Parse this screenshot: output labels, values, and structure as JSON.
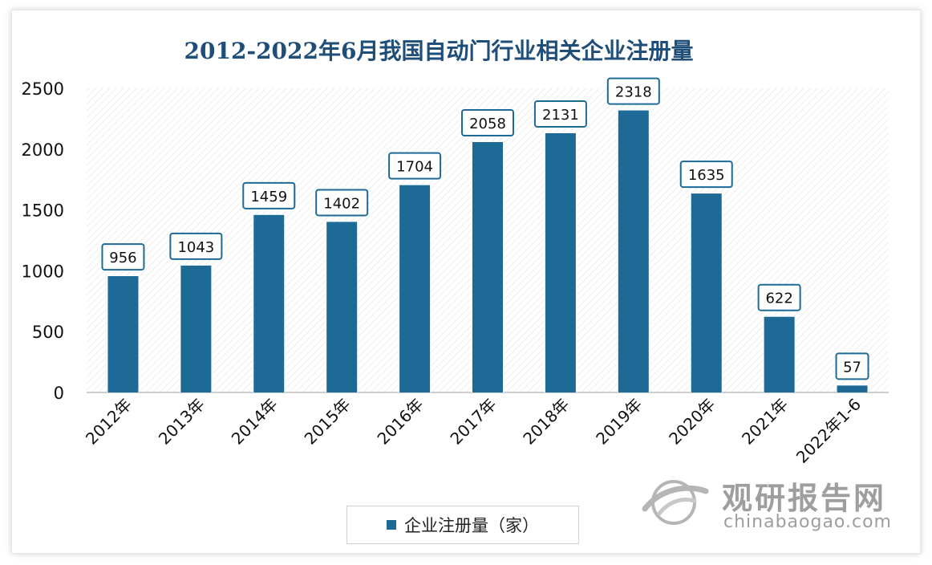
{
  "chart_data": {
    "type": "bar",
    "title": "2012-2022年6月我国自动门行业相关企业注册量",
    "categories": [
      "2012年",
      "2013年",
      "2014年",
      "2015年",
      "2016年",
      "2017年",
      "2018年",
      "2019年",
      "2020年",
      "2021年",
      "2022年1-6"
    ],
    "series": [
      {
        "name": "企业注册量（家）",
        "values": [
          956,
          1043,
          1459,
          1402,
          1704,
          2058,
          2131,
          2318,
          1635,
          622,
          57
        ]
      }
    ],
    "ylim": [
      0,
      2500
    ],
    "yticks": [
      0,
      500,
      1000,
      1500,
      2000,
      2500
    ],
    "grid": false,
    "data_labels": true,
    "legend_position": "bottom",
    "bar_color": "#1d6a96",
    "title_color": "#1f4e79"
  },
  "watermark": {
    "title": "观研报告网",
    "url": "chinabaogao.com",
    "icon": "globe-swoosh-icon"
  }
}
